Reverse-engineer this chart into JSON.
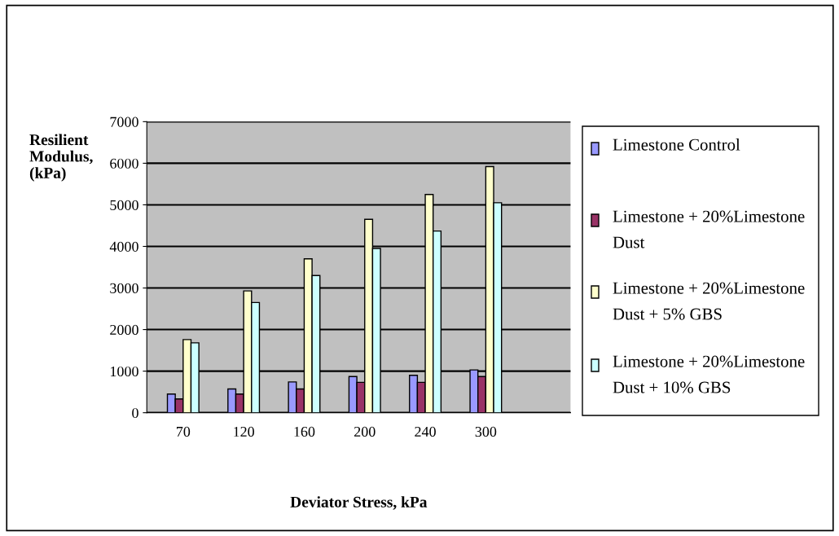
{
  "chart_data": {
    "type": "bar",
    "xlabel": "Deviator Stress, kPa",
    "ylabel": "Resilient Modulus, (kPa)",
    "categories": [
      "70",
      "120",
      "160",
      "200",
      "240",
      "300"
    ],
    "series": [
      {
        "name": "Limestone Control",
        "color": "#9999ff",
        "values": [
          450,
          570,
          740,
          870,
          900,
          1030
        ]
      },
      {
        "name": "Limestone + 20%Limestone Dust",
        "color": "#993366",
        "values": [
          330,
          450,
          570,
          730,
          730,
          870
        ]
      },
      {
        "name": "Limestone + 20%Limestone Dust + 5% GBS",
        "color": "#ffffcc",
        "values": [
          1760,
          2930,
          3700,
          4650,
          5250,
          5920
        ]
      },
      {
        "name": "Limestone + 20%Limestone Dust + 10% GBS",
        "color": "#ccffff",
        "values": [
          1680,
          2650,
          3300,
          3950,
          4370,
          5050
        ]
      }
    ],
    "ylim": [
      0,
      7000
    ],
    "yticks": [
      0,
      1000,
      2000,
      3000,
      4000,
      5000,
      6000,
      7000
    ],
    "grid": "y",
    "legend": "right"
  }
}
